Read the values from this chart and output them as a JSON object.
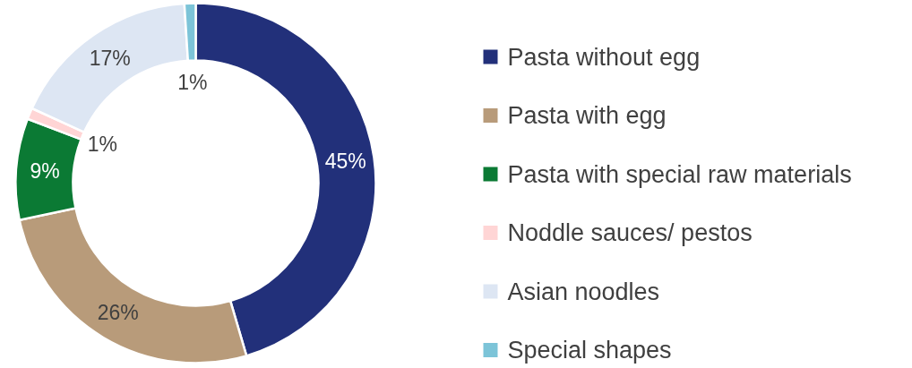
{
  "chart_data": {
    "type": "donut",
    "categories": [
      "Pasta without egg",
      "Pasta with egg",
      "Pasta with special raw materials",
      "Noddle sauces/ pestos",
      "Asian noodles",
      "Special shapes"
    ],
    "values": [
      45,
      26,
      9,
      1,
      17,
      1
    ],
    "colors": [
      "#22307a",
      "#b89b7a",
      "#0b7a34",
      "#ffd5d5",
      "#dde6f3",
      "#7cc4d8"
    ],
    "value_labels": [
      "45%",
      "26%",
      "9%",
      "1%",
      "17%",
      "1%"
    ],
    "legend": "right"
  }
}
